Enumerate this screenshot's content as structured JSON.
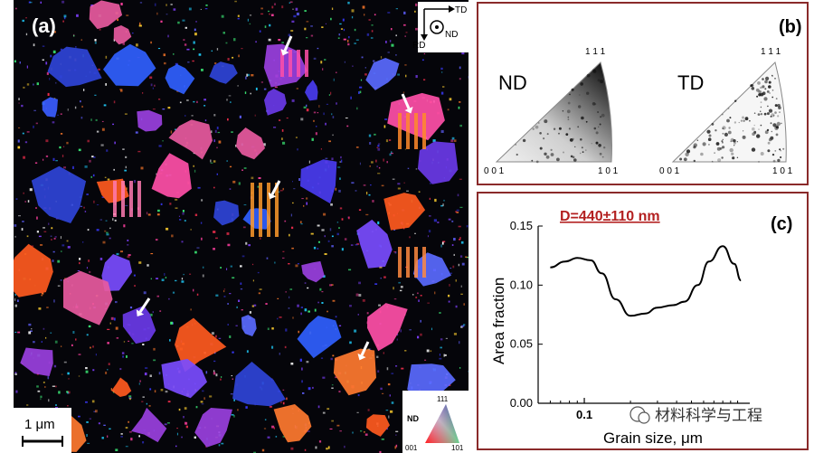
{
  "panel_a": {
    "label": "(a)",
    "axes": {
      "td": "TD",
      "nd": "ND",
      "rd": "RD"
    },
    "scale_bar": "1 μm",
    "legend": {
      "label": "ND",
      "corner_111": "111",
      "corner_001": "001",
      "corner_101": "101"
    }
  },
  "panel_b": {
    "label": "(b)",
    "pole_figures": [
      {
        "title": "ND",
        "corner_111": "1 1 1",
        "corner_001": "0 0 1",
        "corner_101": "1 0 1"
      },
      {
        "title": "TD",
        "corner_111": "1 1 1",
        "corner_001": "0 0 1",
        "corner_101": "1 0 1"
      }
    ]
  },
  "panel_c": {
    "label": "(c)",
    "watermark": "材料科学与工程"
  },
  "chart_data": {
    "type": "line",
    "title": "D=440±110 nm",
    "xlabel": "Grain size, μm",
    "ylabel": "Area fraction",
    "x_scale": "log",
    "xlim": [
      0.05,
      1.2
    ],
    "ylim": [
      0.0,
      0.15
    ],
    "x_ticks": [
      {
        "value": 0.1,
        "label": "0.1"
      }
    ],
    "y_ticks": [
      {
        "value": 0.0,
        "label": "0.00"
      },
      {
        "value": 0.05,
        "label": "0.05"
      },
      {
        "value": 0.1,
        "label": "0.10"
      },
      {
        "value": 0.15,
        "label": "0.15"
      }
    ],
    "series": [
      {
        "name": "Area fraction",
        "x": [
          0.06,
          0.075,
          0.09,
          0.11,
          0.13,
          0.16,
          0.2,
          0.25,
          0.3,
          0.38,
          0.45,
          0.55,
          0.65,
          0.8,
          0.95,
          1.05
        ],
        "y": [
          0.115,
          0.12,
          0.123,
          0.121,
          0.11,
          0.088,
          0.074,
          0.076,
          0.081,
          0.083,
          0.086,
          0.1,
          0.12,
          0.133,
          0.118,
          0.104
        ]
      }
    ]
  }
}
